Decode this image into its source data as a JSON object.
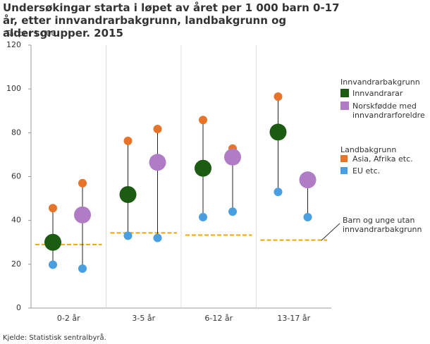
{
  "chart_data": {
    "type": "dot-range",
    "title": "Undersøkingar starta i løpet av året per 1 000 barn 0-17 år, etter innvandrarbakgrunn, landbakgrunn og aldersgrupper. 2015",
    "y_label": "Tal per 1 000",
    "categories": [
      "0-2 år",
      "3-5 år",
      "6-12 år",
      "13-17 år"
    ],
    "ylim": [
      0,
      120
    ],
    "yticks": [
      0,
      20,
      40,
      60,
      80,
      100,
      120
    ],
    "legend_titles": [
      "Innvandrarbakgrunn",
      "Landbakgrunn"
    ],
    "series": [
      {
        "name": "Innvandrarar",
        "color": "#1b5c12",
        "values": [
          30,
          51.8,
          63.8,
          80.3
        ]
      },
      {
        "name": "Norskfødde med innvandrarforeldre",
        "color": "#b07cc6",
        "values": [
          42.5,
          66.5,
          68.9,
          58.5
        ]
      }
    ],
    "origin_series": [
      {
        "name": "Asia, Afrika etc.",
        "color": "#e8742a",
        "values": [
          [
            45.6,
            76.3,
            85.8,
            96.5
          ],
          [
            57,
            81.7,
            72.8,
            60.3
          ]
        ]
      },
      {
        "name": "EU etc.",
        "color": "#4a9fe0",
        "values": [
          [
            19.8,
            33,
            41.5,
            53
          ],
          [
            18,
            32,
            44,
            41.5
          ]
        ]
      }
    ],
    "reference": {
      "name": "Barn og unge utan innvandrarbakgrunn",
      "color": "#f0a500",
      "values": [
        29,
        34.3,
        33.3,
        31
      ]
    },
    "source": "Kjelde: Statistisk sentralbyrå."
  }
}
